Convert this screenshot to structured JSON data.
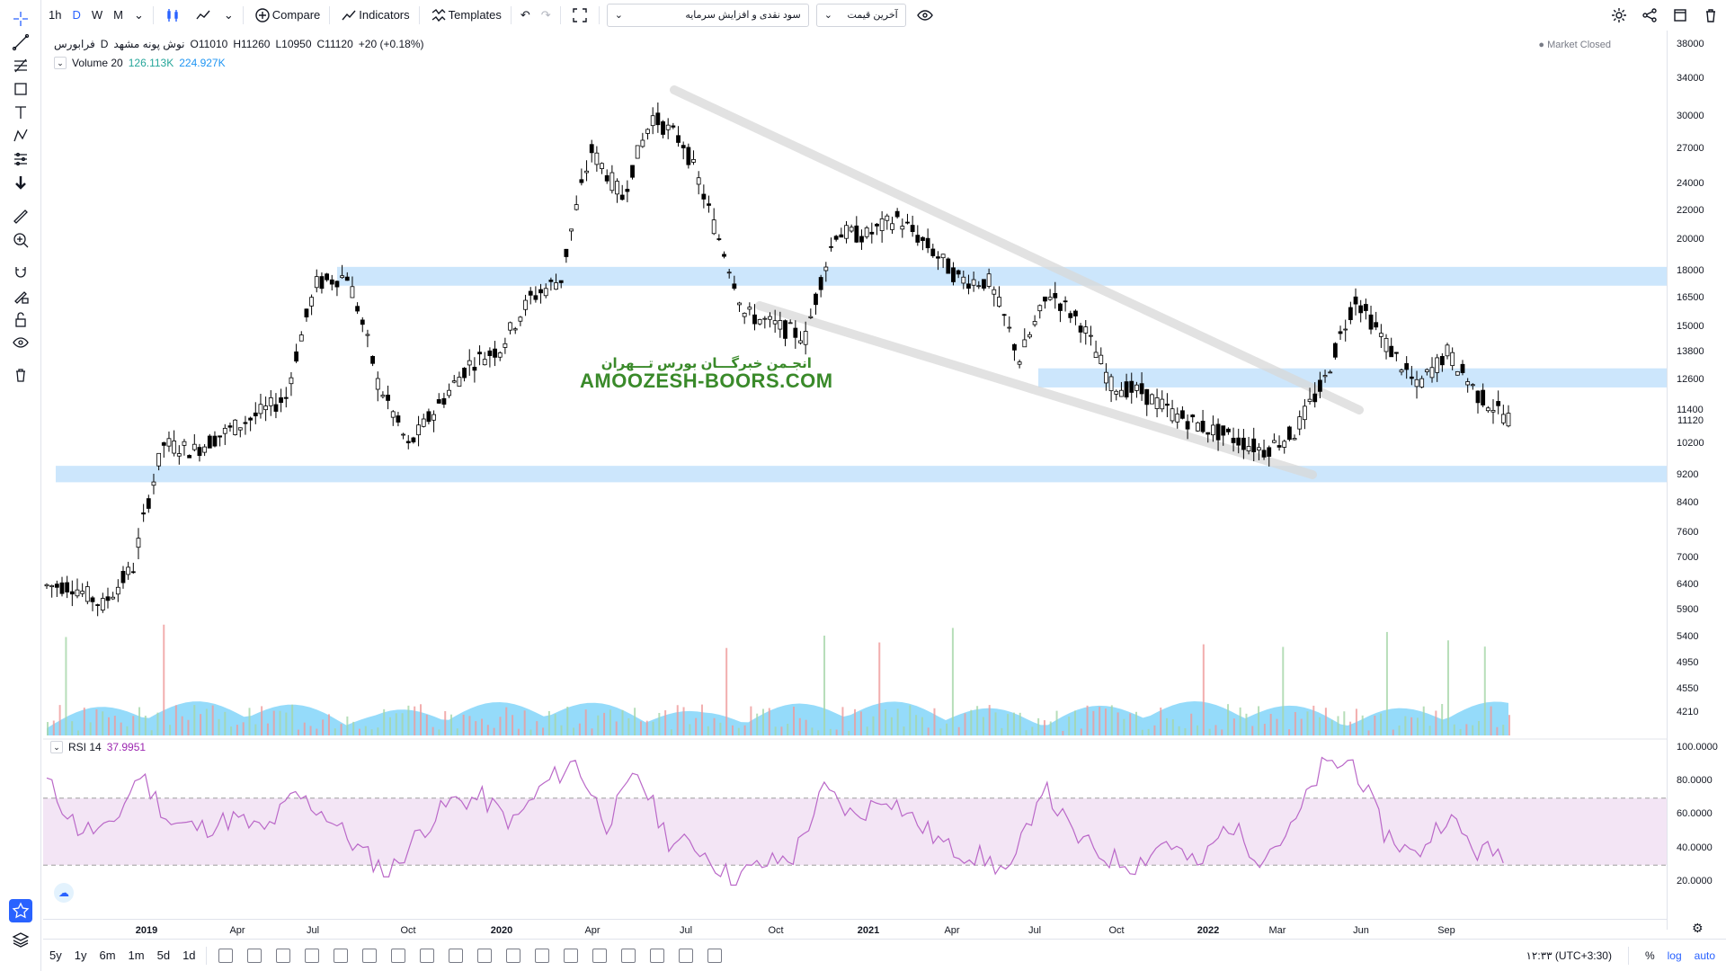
{
  "toolbar": {
    "intervals": [
      "1h",
      "D",
      "W",
      "M"
    ],
    "active_interval": "D",
    "compare_label": "Compare",
    "indicators_label": "Indicators",
    "templates_label": "Templates",
    "select_1": "سود نقدی و افزایش سرمایه",
    "select_2": "آخرین قیمت"
  },
  "legend": {
    "symbol": "نوش پونه مشهد",
    "interval": "D",
    "exchange": "فرابورس",
    "open": "O11010",
    "high": "H11260",
    "low": "L10950",
    "close": "C11120",
    "change": "+20 (+0.18%)",
    "volume_label": "Volume 20",
    "volume_v1": "126.113K",
    "volume_v2": "224.927K",
    "market_status": "Market Closed"
  },
  "rsi": {
    "label": "RSI 14",
    "value": "37.9951"
  },
  "watermark": {
    "fa": "انجـمن خبرگـــان بورس تـــهران",
    "en": "AMOOZESH-BOORS.COM"
  },
  "price_axis": [
    "38000",
    "34000",
    "30000",
    "27000",
    "24000",
    "22000",
    "20000",
    "18000",
    "16500",
    "15000",
    "13800",
    "12600",
    "11400",
    "10200",
    "9200",
    "8400",
    "7600",
    "7000",
    "6400",
    "5900",
    "5400",
    "4950",
    "4550",
    "4210"
  ],
  "last_price": "11120",
  "rsi_axis": [
    "100.0000",
    "80.0000",
    "60.0000",
    "40.0000",
    "20.0000"
  ],
  "time_axis": [
    "2019",
    "Apr",
    "Jul",
    "Oct",
    "2020",
    "Apr",
    "Jul",
    "Oct",
    "2021",
    "Apr",
    "Jul",
    "Oct",
    "2022",
    "Mar",
    "Jun",
    "Sep"
  ],
  "bottom": {
    "ranges": [
      "5y",
      "1y",
      "6m",
      "1m",
      "5d",
      "1d"
    ],
    "clock": "۱۲:۳۳ (UTC+3:30)",
    "percent": "%",
    "log": "log",
    "auto": "auto"
  },
  "colors": {
    "zone": "#bbdefb",
    "rsi_line": "#ba68c8",
    "rsi_band": "#f3e5f5",
    "vol_area": "#4fc3f7",
    "accent": "#2962ff"
  },
  "chart_data": {
    "type": "candlestick",
    "x": [
      "2018-11",
      "2018-12",
      "2019-01",
      "2019-02",
      "2019-03",
      "2019-04",
      "2019-05",
      "2019-06",
      "2019-07",
      "2019-08",
      "2019-09",
      "2019-10",
      "2019-11",
      "2019-12",
      "2020-01",
      "2020-02",
      "2020-03",
      "2020-04",
      "2020-05",
      "2020-06",
      "2020-07",
      "2020-08",
      "2020-09",
      "2020-10",
      "2020-11",
      "2020-12",
      "2021-01",
      "2021-02",
      "2021-03",
      "2021-04",
      "2021-05",
      "2021-06",
      "2021-07",
      "2021-08",
      "2021-09",
      "2021-10",
      "2021-11",
      "2021-12",
      "2022-01",
      "2022-02",
      "2022-03",
      "2022-04",
      "2022-05",
      "2022-06",
      "2022-07",
      "2022-08",
      "2022-09",
      "2022-10"
    ],
    "close": [
      6400,
      6000,
      6800,
      10200,
      10000,
      10600,
      11200,
      11900,
      17300,
      17800,
      12500,
      10100,
      11600,
      13300,
      14000,
      16500,
      17600,
      26800,
      23000,
      30000,
      27500,
      21000,
      15700,
      15100,
      14500,
      20500,
      20300,
      21500,
      19600,
      17600,
      17400,
      13500,
      16800,
      15200,
      12400,
      12100,
      11300,
      10800,
      10400,
      10000,
      10600,
      12600,
      16500,
      14200,
      12300,
      13800,
      12000,
      11120
    ],
    "zones": [
      [
        17200,
        18300
      ],
      [
        12300,
        13100
      ],
      [
        9000,
        9500
      ]
    ],
    "price_axis_scale": "log",
    "rsi": [
      80,
      52,
      50,
      85,
      55,
      52,
      58,
      50,
      72,
      60,
      40,
      25,
      50,
      68,
      70,
      55,
      78,
      92,
      55,
      85,
      45,
      40,
      22,
      30,
      35,
      75,
      58,
      72,
      55,
      40,
      35,
      25,
      78,
      48,
      35,
      30,
      45,
      28,
      55,
      35,
      50,
      88,
      92,
      50,
      35,
      60,
      38,
      38
    ],
    "rsi_bands": [
      30,
      70
    ]
  }
}
